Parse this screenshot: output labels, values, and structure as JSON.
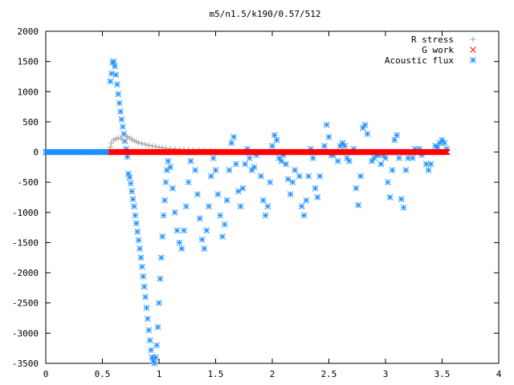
{
  "chart_data": {
    "type": "scatter",
    "title": "m5/n1.5/k190/0.57/512",
    "xlabel": "",
    "ylabel": "",
    "xlim": [
      0,
      4
    ],
    "ylim": [
      -3500,
      2000
    ],
    "x_ticks": [
      0,
      0.5,
      1,
      1.5,
      2,
      2.5,
      3,
      3.5,
      4
    ],
    "x_tick_labels": [
      "0",
      "0.5",
      "1",
      "1.5",
      "2",
      "2.5",
      "3",
      "3.5",
      "4"
    ],
    "y_ticks": [
      -3500,
      -3000,
      -2500,
      -2000,
      -1500,
      -1000,
      -500,
      0,
      500,
      1000,
      1500,
      2000
    ],
    "y_tick_labels": [
      "-3500",
      "-3000",
      "-2500",
      "-2000",
      "-1500",
      "-1000",
      "-500",
      "0",
      "500",
      "1000",
      "1500",
      "2000"
    ],
    "grid": false,
    "legend_position": "top-right",
    "series": [
      {
        "name": "R stress",
        "marker": "plus",
        "color": "#a0a0a0",
        "points": [
          [
            0.57,
            80
          ],
          [
            0.58,
            150
          ],
          [
            0.6,
            200
          ],
          [
            0.62,
            220
          ],
          [
            0.64,
            230
          ],
          [
            0.66,
            235
          ],
          [
            0.68,
            200
          ],
          [
            0.7,
            180
          ],
          [
            0.72,
            250
          ],
          [
            0.74,
            235
          ],
          [
            0.76,
            210
          ],
          [
            0.78,
            190
          ],
          [
            0.8,
            170
          ],
          [
            0.82,
            155
          ],
          [
            0.85,
            140
          ],
          [
            0.88,
            125
          ],
          [
            0.91,
            110
          ],
          [
            0.94,
            100
          ],
          [
            0.97,
            90
          ],
          [
            1.0,
            80
          ],
          [
            1.03,
            72
          ],
          [
            1.06,
            65
          ],
          [
            1.1,
            58
          ],
          [
            1.14,
            52
          ],
          [
            1.18,
            46
          ],
          [
            1.22,
            40
          ],
          [
            1.26,
            35
          ],
          [
            1.3,
            30
          ],
          [
            1.35,
            25
          ],
          [
            1.4,
            20
          ],
          [
            1.45,
            15
          ],
          [
            1.5,
            10
          ],
          [
            1.6,
            6
          ],
          [
            1.8,
            4
          ],
          [
            2.0,
            2
          ],
          [
            2.4,
            1
          ],
          [
            2.8,
            1
          ],
          [
            3.2,
            0
          ],
          [
            3.5,
            0
          ]
        ]
      },
      {
        "name": "G work",
        "marker": "cross",
        "color": "#ff0000",
        "x_range": [
          0.57,
          3.55
        ],
        "value": 0
      },
      {
        "name": "Acoustic flux",
        "marker": "star",
        "color": "#1e90ff",
        "baseline_x_range": [
          0.0,
          0.57
        ],
        "baseline_value": 0,
        "points": [
          [
            0.57,
            1170
          ],
          [
            0.58,
            1300
          ],
          [
            0.59,
            1480
          ],
          [
            0.6,
            1500
          ],
          [
            0.61,
            1420
          ],
          [
            0.62,
            1280
          ],
          [
            0.63,
            1120
          ],
          [
            0.64,
            960
          ],
          [
            0.65,
            810
          ],
          [
            0.66,
            670
          ],
          [
            0.67,
            540
          ],
          [
            0.68,
            420
          ],
          [
            0.69,
            300
          ],
          [
            0.7,
            180
          ],
          [
            0.71,
            50
          ],
          [
            0.72,
            -80
          ],
          [
            0.73,
            -360
          ],
          [
            0.74,
            -420
          ],
          [
            0.75,
            -520
          ],
          [
            0.76,
            -650
          ],
          [
            0.77,
            -780
          ],
          [
            0.78,
            -900
          ],
          [
            0.79,
            -1050
          ],
          [
            0.8,
            -1180
          ],
          [
            0.81,
            -1320
          ],
          [
            0.82,
            -1460
          ],
          [
            0.83,
            -1600
          ],
          [
            0.84,
            -1750
          ],
          [
            0.85,
            -1900
          ],
          [
            0.86,
            -2060
          ],
          [
            0.87,
            -2230
          ],
          [
            0.88,
            -2400
          ],
          [
            0.89,
            -2580
          ],
          [
            0.9,
            -2760
          ],
          [
            0.91,
            -2950
          ],
          [
            0.92,
            -3120
          ],
          [
            0.93,
            -3280
          ],
          [
            0.94,
            -3400
          ],
          [
            0.95,
            -3460
          ],
          [
            0.96,
            -3500
          ],
          [
            0.97,
            -3400
          ],
          [
            0.98,
            -3200
          ],
          [
            0.99,
            -2900
          ],
          [
            1.0,
            -2500
          ],
          [
            1.01,
            -2100
          ],
          [
            1.02,
            -1750
          ],
          [
            1.03,
            -1400
          ],
          [
            1.04,
            -1050
          ],
          [
            1.05,
            -800
          ],
          [
            1.06,
            -500
          ],
          [
            1.07,
            -300
          ],
          [
            1.08,
            -150
          ],
          [
            1.1,
            -250
          ],
          [
            1.12,
            -600
          ],
          [
            1.14,
            -1000
          ],
          [
            1.16,
            -1300
          ],
          [
            1.18,
            -1500
          ],
          [
            1.2,
            -1600
          ],
          [
            1.22,
            -1300
          ],
          [
            1.24,
            -900
          ],
          [
            1.26,
            -500
          ],
          [
            1.28,
            -150
          ],
          [
            1.3,
            0
          ],
          [
            1.32,
            -300
          ],
          [
            1.34,
            -700
          ],
          [
            1.36,
            -1100
          ],
          [
            1.38,
            -1450
          ],
          [
            1.4,
            -1600
          ],
          [
            1.42,
            -1300
          ],
          [
            1.44,
            -900
          ],
          [
            1.46,
            -400
          ],
          [
            1.48,
            -100
          ],
          [
            1.5,
            -300
          ],
          [
            1.52,
            -700
          ],
          [
            1.54,
            -1050
          ],
          [
            1.56,
            -1400
          ],
          [
            1.58,
            -1200
          ],
          [
            1.6,
            -800
          ],
          [
            1.62,
            -300
          ],
          [
            1.64,
            150
          ],
          [
            1.66,
            250
          ],
          [
            1.68,
            -200
          ],
          [
            1.7,
            -650
          ],
          [
            1.72,
            -900
          ],
          [
            1.74,
            -600
          ],
          [
            1.76,
            -200
          ],
          [
            1.78,
            50
          ],
          [
            1.8,
            -100
          ],
          [
            1.82,
            -300
          ],
          [
            1.84,
            -250
          ],
          [
            1.86,
            -50
          ],
          [
            1.88,
            0
          ],
          [
            1.9,
            -400
          ],
          [
            1.92,
            -800
          ],
          [
            1.94,
            -1050
          ],
          [
            1.96,
            -900
          ],
          [
            1.98,
            -500
          ],
          [
            2.0,
            100
          ],
          [
            2.02,
            280
          ],
          [
            2.04,
            200
          ],
          [
            2.06,
            -100
          ],
          [
            2.08,
            -150
          ],
          [
            2.1,
            -50
          ],
          [
            2.12,
            -200
          ],
          [
            2.14,
            -450
          ],
          [
            2.16,
            -700
          ],
          [
            2.18,
            -500
          ],
          [
            2.2,
            -300
          ],
          [
            2.22,
            0
          ],
          [
            2.24,
            -400
          ],
          [
            2.26,
            -900
          ],
          [
            2.28,
            -1050
          ],
          [
            2.3,
            -800
          ],
          [
            2.32,
            -400
          ],
          [
            2.34,
            50
          ],
          [
            2.36,
            -100
          ],
          [
            2.38,
            -600
          ],
          [
            2.4,
            -750
          ],
          [
            2.42,
            -400
          ],
          [
            2.44,
            0
          ],
          [
            2.46,
            100
          ],
          [
            2.48,
            450
          ],
          [
            2.5,
            250
          ],
          [
            2.52,
            -50
          ],
          [
            2.54,
            -50
          ],
          [
            2.56,
            0
          ],
          [
            2.58,
            -150
          ],
          [
            2.6,
            100
          ],
          [
            2.62,
            150
          ],
          [
            2.64,
            100
          ],
          [
            2.66,
            -100
          ],
          [
            2.68,
            -150
          ],
          [
            2.7,
            0
          ],
          [
            2.72,
            50
          ],
          [
            2.74,
            -600
          ],
          [
            2.76,
            -880
          ],
          [
            2.78,
            -400
          ],
          [
            2.8,
            400
          ],
          [
            2.82,
            450
          ],
          [
            2.84,
            300
          ],
          [
            2.86,
            0
          ],
          [
            2.88,
            -150
          ],
          [
            2.9,
            -100
          ],
          [
            2.92,
            -50
          ],
          [
            2.94,
            -50
          ],
          [
            2.96,
            -200
          ],
          [
            2.98,
            -50
          ],
          [
            3.0,
            -100
          ],
          [
            3.02,
            -500
          ],
          [
            3.04,
            -750
          ],
          [
            3.06,
            -300
          ],
          [
            3.08,
            200
          ],
          [
            3.1,
            280
          ],
          [
            3.12,
            -100
          ],
          [
            3.14,
            -780
          ],
          [
            3.16,
            -920
          ],
          [
            3.18,
            -300
          ],
          [
            3.2,
            -100
          ],
          [
            3.22,
            0
          ],
          [
            3.24,
            -100
          ],
          [
            3.26,
            50
          ],
          [
            3.28,
            0
          ],
          [
            3.3,
            50
          ],
          [
            3.32,
            -50
          ],
          [
            3.34,
            0
          ],
          [
            3.36,
            -200
          ],
          [
            3.38,
            -300
          ],
          [
            3.4,
            -200
          ],
          [
            3.42,
            0
          ],
          [
            3.44,
            100
          ],
          [
            3.46,
            80
          ],
          [
            3.48,
            150
          ],
          [
            3.5,
            200
          ],
          [
            3.52,
            150
          ],
          [
            3.54,
            50
          ]
        ]
      }
    ]
  }
}
